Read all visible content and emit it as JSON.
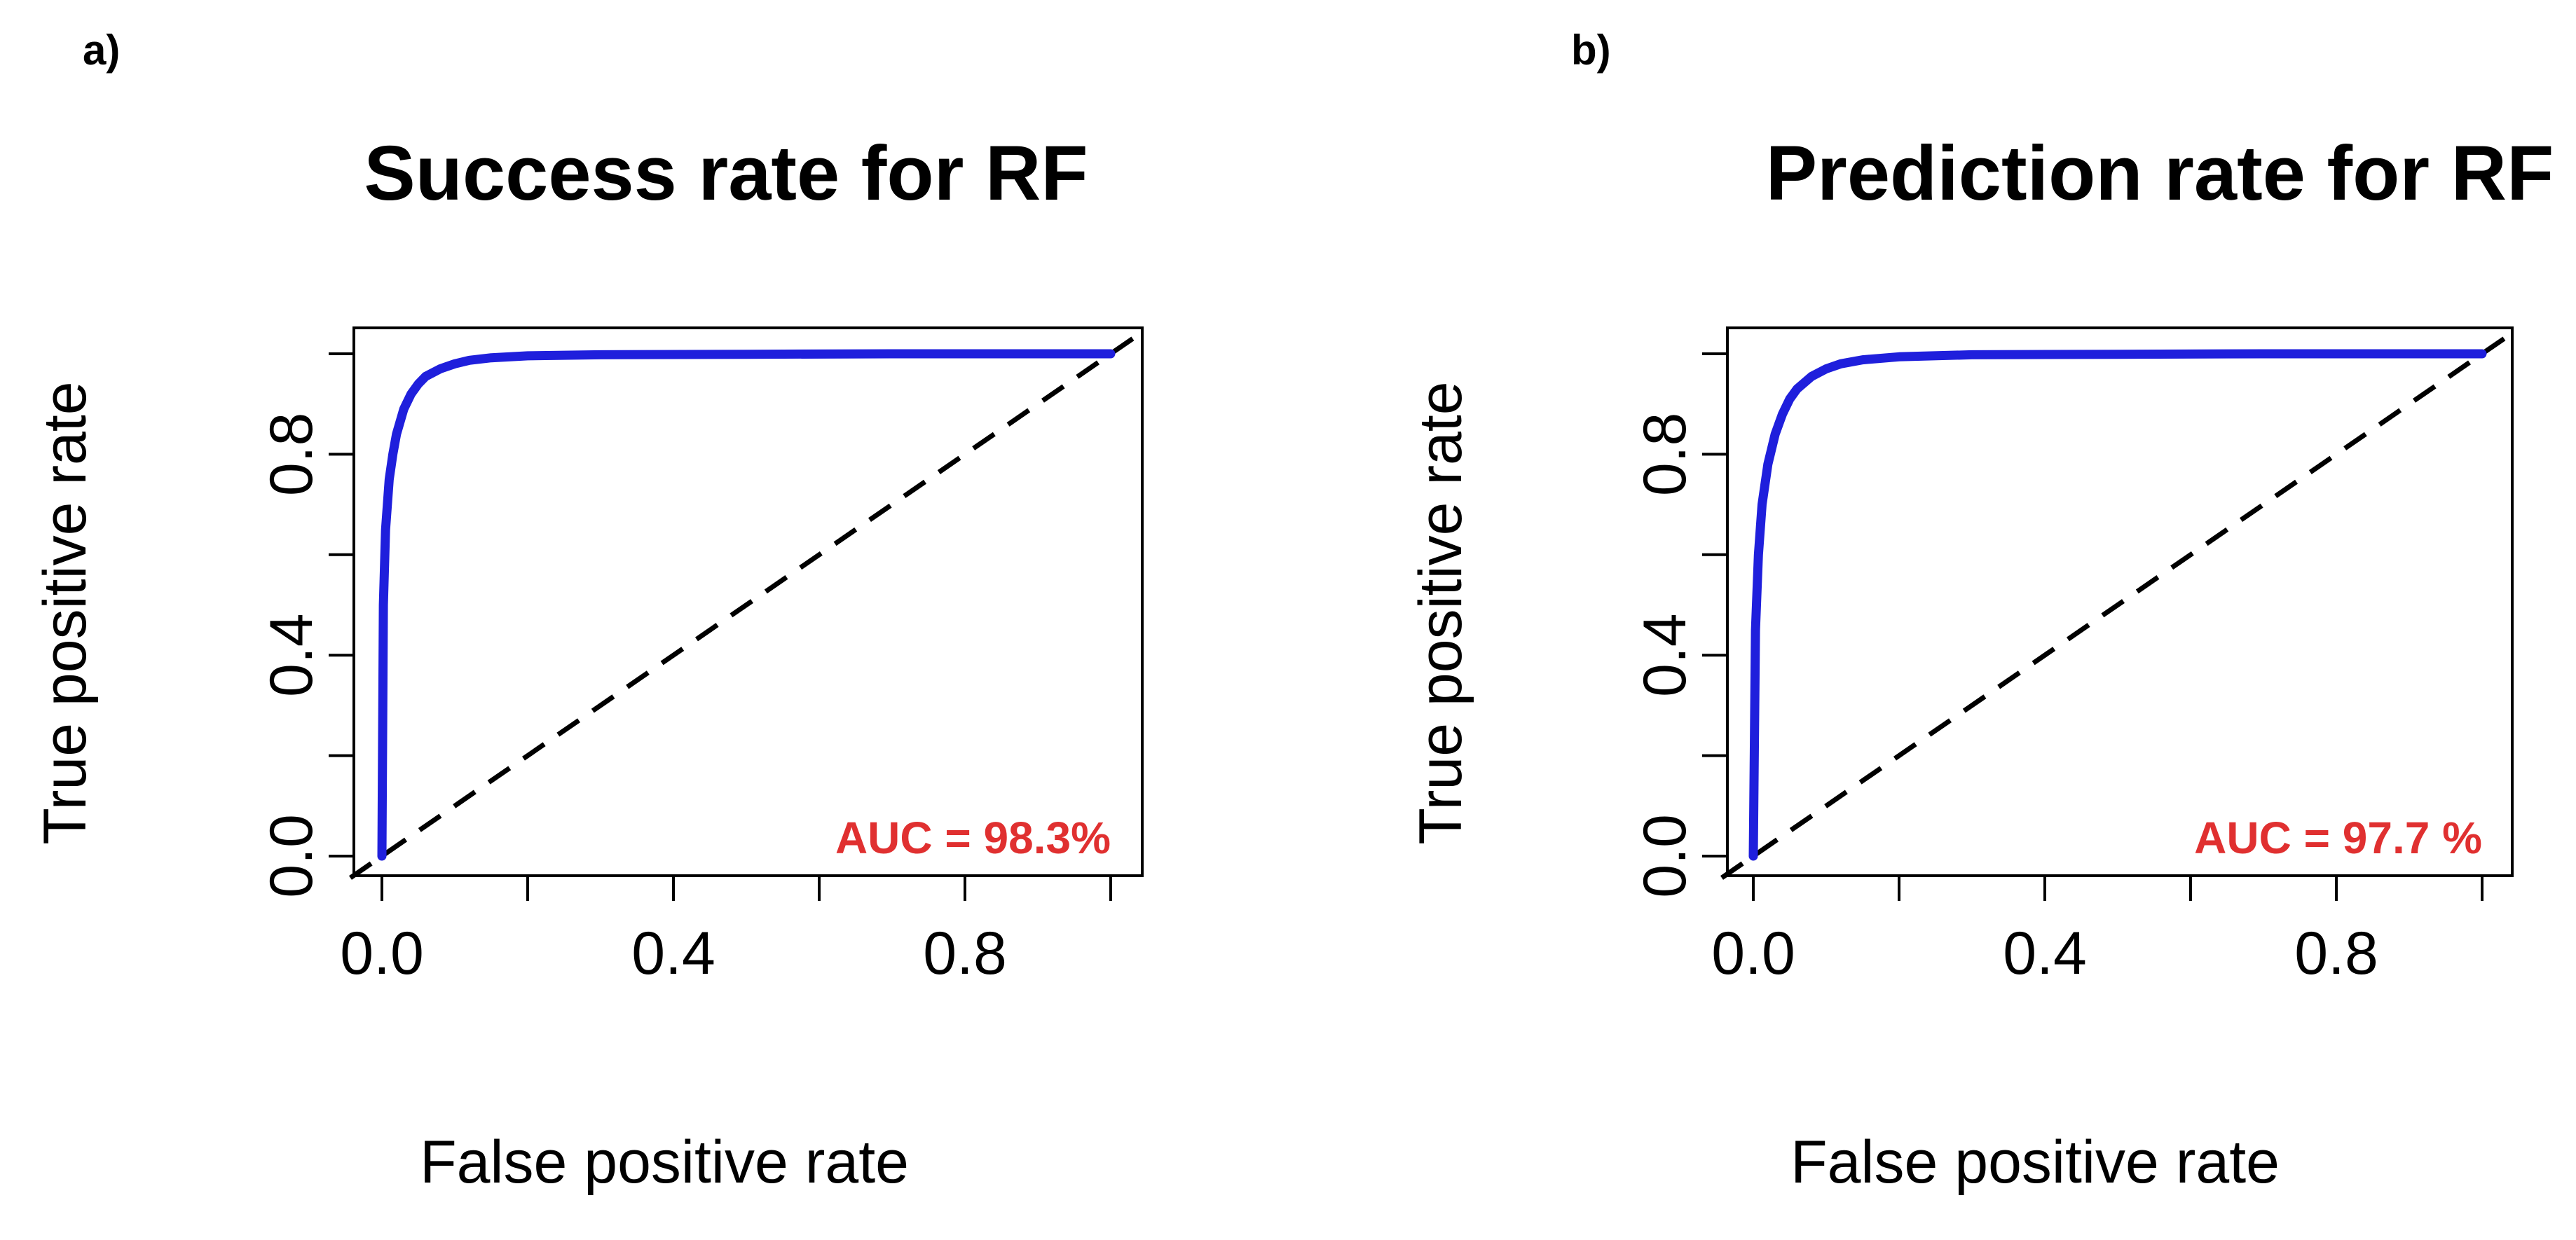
{
  "colors": {
    "roc_curve": "#1f1fdc",
    "diagonal": "#000000",
    "auc_text": "#e03030"
  },
  "chart_data": [
    {
      "panel": "a)",
      "type": "line",
      "title": "Success rate for RF",
      "xlabel": "False positive rate",
      "ylabel": "True positive rate",
      "xlim": [
        0,
        1
      ],
      "ylim": [
        0,
        1
      ],
      "xticks": [
        "0.0",
        "0.2",
        "0.4",
        "0.6",
        "0.8",
        "1.0"
      ],
      "xtick_labels": [
        "0.0",
        "",
        "0.4",
        "",
        "0.8",
        ""
      ],
      "yticks": [
        "0.0",
        "0.2",
        "0.4",
        "0.6",
        "0.8",
        "1.0"
      ],
      "ytick_labels": [
        "0.0",
        "",
        "0.4",
        "",
        "0.8",
        ""
      ],
      "grid": false,
      "annotation": "AUC = 98.3%",
      "series": [
        {
          "x": [
            0.0,
            0.002,
            0.005,
            0.01,
            0.015,
            0.02,
            0.03,
            0.04,
            0.05,
            0.06,
            0.08,
            0.1,
            0.12,
            0.15,
            0.2,
            0.3,
            0.5,
            0.7,
            1.0
          ],
          "y": [
            0.0,
            0.5,
            0.65,
            0.75,
            0.8,
            0.84,
            0.89,
            0.92,
            0.94,
            0.955,
            0.97,
            0.98,
            0.987,
            0.992,
            0.996,
            0.998,
            0.999,
            1.0,
            1.0
          ]
        },
        {
          "x": [
            0,
            1
          ],
          "y": [
            0,
            1
          ],
          "style": "dashed"
        }
      ]
    },
    {
      "panel": "b)",
      "type": "line",
      "title": "Prediction rate for RF",
      "xlabel": "False positive rate",
      "ylabel": "True positive rate",
      "xlim": [
        0,
        1
      ],
      "ylim": [
        0,
        1
      ],
      "xticks": [
        "0.0",
        "0.2",
        "0.4",
        "0.6",
        "0.8",
        "1.0"
      ],
      "xtick_labels": [
        "0.0",
        "",
        "0.4",
        "",
        "0.8",
        ""
      ],
      "yticks": [
        "0.0",
        "0.2",
        "0.4",
        "0.6",
        "0.8",
        "1.0"
      ],
      "ytick_labels": [
        "0.0",
        "",
        "0.4",
        "",
        "0.8",
        ""
      ],
      "grid": false,
      "annotation": "AUC = 97.7 %",
      "series": [
        {
          "x": [
            0.0,
            0.003,
            0.007,
            0.012,
            0.02,
            0.03,
            0.04,
            0.05,
            0.06,
            0.08,
            0.1,
            0.12,
            0.15,
            0.2,
            0.3,
            0.5,
            0.7,
            1.0
          ],
          "y": [
            0.0,
            0.45,
            0.6,
            0.7,
            0.78,
            0.84,
            0.88,
            0.91,
            0.93,
            0.955,
            0.97,
            0.98,
            0.988,
            0.994,
            0.998,
            0.999,
            1.0,
            1.0
          ]
        },
        {
          "x": [
            0,
            1
          ],
          "y": [
            0,
            1
          ],
          "style": "dashed"
        }
      ]
    }
  ]
}
